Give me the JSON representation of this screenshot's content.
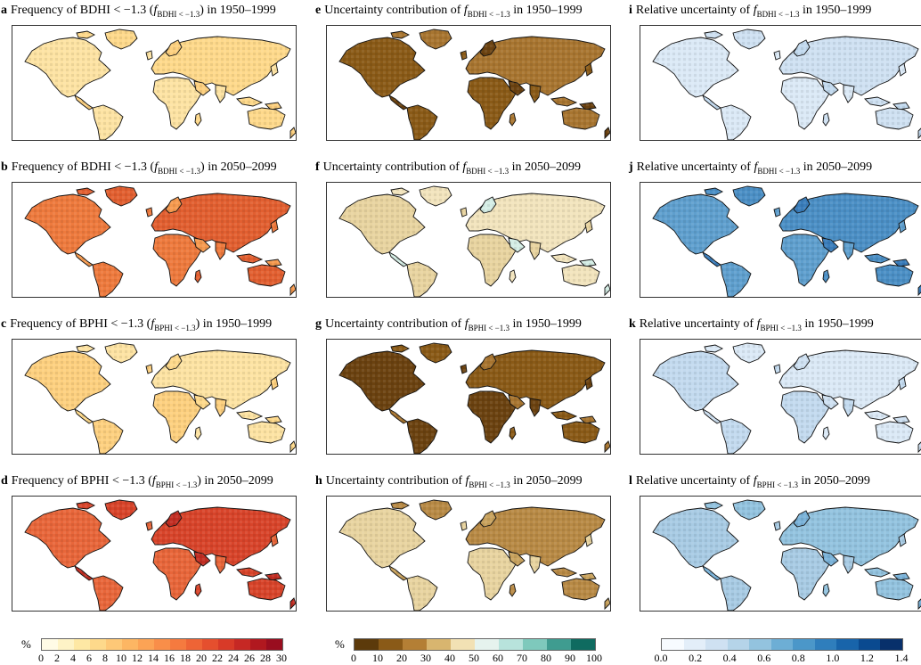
{
  "panels": [
    {
      "letter": "a",
      "pre": "Frequency of BDHI < −1.3 (",
      "fsym": "f",
      "sub": "BDHI < −1.3",
      "post": ") in 1950–1999",
      "palette": "freq",
      "level": 1
    },
    {
      "letter": "b",
      "pre": "Frequency of BDHI < −1.3 (",
      "fsym": "f",
      "sub": "BDHI < −1.3",
      "post": ") in 2050–2099",
      "palette": "freq",
      "level": 3
    },
    {
      "letter": "c",
      "pre": "Frequency of BPHI < −1.3 (",
      "fsym": "f",
      "sub": "BPHI < −1.3",
      "post": ") in 1950–1999",
      "palette": "freq",
      "level": 1
    },
    {
      "letter": "d",
      "pre": "Frequency of BPHI < −1.3 (",
      "fsym": "f",
      "sub": "BPHI < −1.3",
      "post": ") in 2050–2099",
      "palette": "freq",
      "level": 4
    },
    {
      "letter": "e",
      "pre": "Uncertainty contribution of ",
      "fsym": "f",
      "sub": "BDHI < −1.3",
      "post": " in 1950–1999",
      "palette": "unc",
      "level": 1
    },
    {
      "letter": "f",
      "pre": "Uncertainty contribution of ",
      "fsym": "f",
      "sub": "BDHI < −1.3",
      "post": " in 2050–2099",
      "palette": "unc",
      "level": 3
    },
    {
      "letter": "g",
      "pre": "Uncertainty contribution of ",
      "fsym": "f",
      "sub": "BPHI < −1.3",
      "post": " in 1950–1999",
      "palette": "unc",
      "level": 1
    },
    {
      "letter": "h",
      "pre": "Uncertainty contribution of ",
      "fsym": "f",
      "sub": "BPHI < −1.3",
      "post": " in 2050–2099",
      "palette": "unc",
      "level": 2
    },
    {
      "letter": "i",
      "pre": "Relative uncertainty of ",
      "fsym": "f",
      "sub": "BDHI < −1.3",
      "post": " in 1950–1999",
      "palette": "rel",
      "level": 1
    },
    {
      "letter": "j",
      "pre": "Relative uncertainty of ",
      "fsym": "f",
      "sub": "BDHI < −1.3",
      "post": " in 2050–2099",
      "palette": "rel",
      "level": 3
    },
    {
      "letter": "k",
      "pre": "Relative uncertainty of ",
      "fsym": "f",
      "sub": "BPHI < −1.3",
      "post": " in 1950–1999",
      "palette": "rel",
      "level": 1
    },
    {
      "letter": "l",
      "pre": "Relative uncertainty of ",
      "fsym": "f",
      "sub": "BPHI < −1.3",
      "post": " in 2050–2099",
      "palette": "rel",
      "level": 2
    }
  ],
  "colorbars": [
    {
      "unit": "%",
      "ticks": [
        "0",
        "2",
        "4",
        "6",
        "8",
        "10",
        "12",
        "14",
        "16",
        "18",
        "20",
        "22",
        "24",
        "26",
        "28",
        "30"
      ],
      "colors": [
        "#fffbe6",
        "#fef3c6",
        "#fee8a4",
        "#fed98b",
        "#fec877",
        "#fdb663",
        "#fca355",
        "#f98e49",
        "#f57a3f",
        "#ee6436",
        "#e54f2e",
        "#d83a28",
        "#c62824",
        "#b1181f",
        "#990d1f"
      ]
    },
    {
      "unit": "%",
      "ticks": [
        "0",
        "10",
        "20",
        "30",
        "40",
        "50",
        "60",
        "70",
        "80",
        "90",
        "100"
      ],
      "colors": [
        "#5c3a0b",
        "#8a5a17",
        "#b47f35",
        "#d8b56f",
        "#f2e1b4",
        "#e6f3ee",
        "#b8e3dc",
        "#7ec9bc",
        "#3f9c90",
        "#0f6b60"
      ]
    },
    {
      "unit": "",
      "ticks": [
        "0.0",
        "0.2",
        "0.4",
        "0.6",
        "0.8",
        "1.0",
        "1.2",
        "1.4"
      ],
      "colors": [
        "#f7fbff",
        "#e3eef9",
        "#cfe1f2",
        "#b5d4e9",
        "#93c3df",
        "#6daed5",
        "#4b97c9",
        "#2f7ebc",
        "#1864aa",
        "#0a4a90",
        "#08306b"
      ]
    }
  ]
}
